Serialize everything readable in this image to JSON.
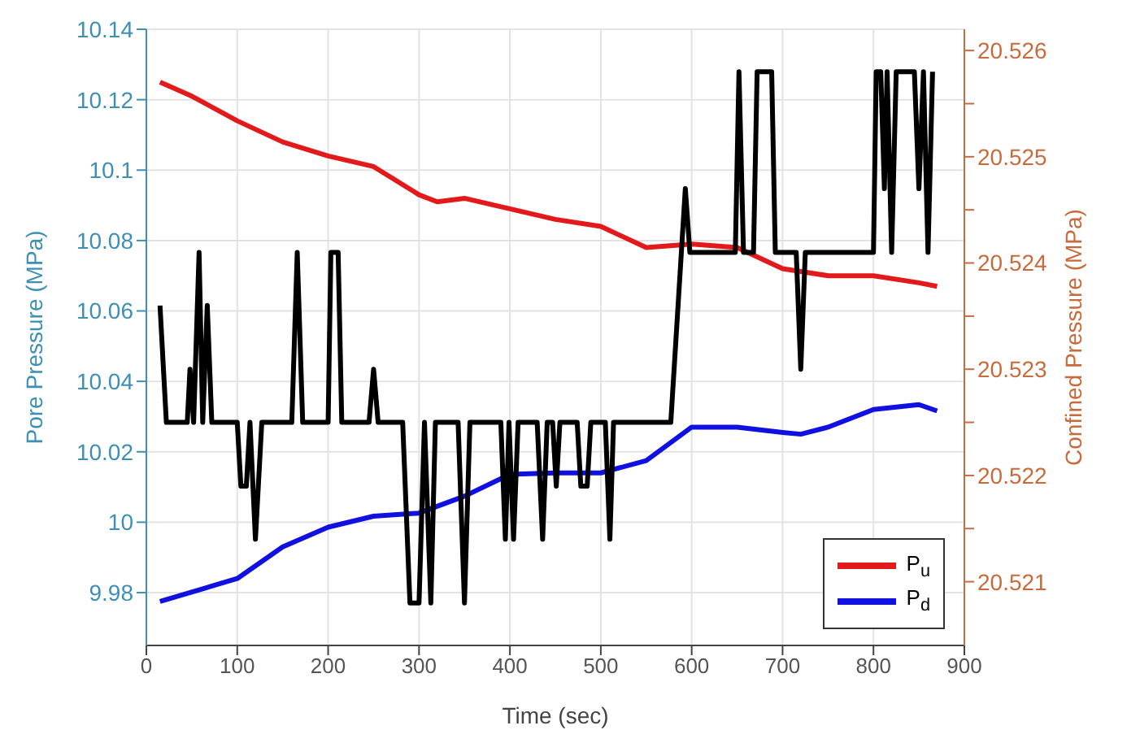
{
  "chart_data": {
    "type": "line",
    "xlabel": "Time (sec)",
    "ylabel": "Pore Pressure (MPa)",
    "y2label": "Confined Pressure (MPa)",
    "xlim": [
      0,
      900
    ],
    "xticks": [
      0,
      100,
      200,
      300,
      400,
      500,
      600,
      700,
      800,
      900
    ],
    "ylim": [
      9.965,
      10.14
    ],
    "yticks": [
      9.98,
      10,
      10.02,
      10.04,
      10.06,
      10.08,
      10.1,
      10.12,
      10.14
    ],
    "y2lim": [
      20.5204,
      20.5262
    ],
    "y2ticks": [
      20.521,
      {
        "value": 20.5215,
        "label": null
      },
      20.522,
      {
        "value": 20.5225,
        "label": null
      },
      20.523,
      {
        "value": 20.5235,
        "label": null
      },
      20.524,
      {
        "value": 20.5245,
        "label": null
      },
      20.525,
      {
        "value": 20.5255,
        "label": null
      },
      20.526
    ],
    "grid": true,
    "legend": "bottom right",
    "marker": "none",
    "line_style": "solid",
    "series": [
      {
        "name": "P$_{u}$",
        "color": "#e31a1c",
        "x": [
          15,
          50,
          100,
          150,
          200,
          250,
          300,
          320,
          350,
          400,
          450,
          500,
          550,
          600,
          650,
          700,
          750,
          800,
          850,
          870
        ],
        "values": [
          10.125,
          10.121,
          10.114,
          10.108,
          10.104,
          10.101,
          10.093,
          10.091,
          10.092,
          10.089,
          10.086,
          10.084,
          10.078,
          10.079,
          10.078,
          10.072,
          10.07,
          10.07,
          10.068,
          10.067
        ]
      },
      {
        "name": "P$_{d}$",
        "color": "#1010e0",
        "x": [
          15,
          100,
          150,
          200,
          250,
          300,
          350,
          400,
          450,
          500,
          550,
          600,
          650,
          700,
          720,
          750,
          800,
          850,
          870
        ],
        "values": [
          9.9775,
          9.984,
          9.993,
          9.9986,
          10.0017,
          10.0026,
          10.0074,
          10.0136,
          10.014,
          10.014,
          10.0175,
          10.027,
          10.027,
          10.0255,
          10.025,
          10.027,
          10.032,
          10.0334,
          10.0316
        ]
      },
      {
        "color": "#000000",
        "axis": "y2",
        "x": [
          15,
          22,
          45,
          48,
          52,
          58,
          62,
          67,
          72,
          100,
          104,
          110,
          114,
          120,
          127,
          160,
          166,
          172,
          200,
          203,
          211,
          215,
          245,
          250,
          255,
          282,
          290,
          300,
          306,
          313,
          318,
          343,
          350,
          356,
          390,
          395,
          399,
          404,
          409,
          430,
          436,
          441,
          447,
          451,
          455,
          474,
          478,
          485,
          489,
          505,
          510,
          514,
          577,
          593,
          598,
          648,
          652,
          657,
          668,
          672,
          688,
          692,
          715,
          720,
          725,
          800,
          803,
          808,
          812,
          815,
          820,
          825,
          845,
          850,
          855,
          860,
          865
        ],
        "values": [
          20.5236,
          20.5225,
          20.5225,
          20.523,
          20.5225,
          20.5241,
          20.5225,
          20.5236,
          20.5225,
          20.5225,
          20.5219,
          20.5219,
          20.5225,
          20.5214,
          20.5225,
          20.5225,
          20.5241,
          20.5225,
          20.5225,
          20.5241,
          20.5241,
          20.5225,
          20.5225,
          20.523,
          20.5225,
          20.5225,
          20.5208,
          20.5208,
          20.5225,
          20.5208,
          20.5225,
          20.5225,
          20.5208,
          20.5225,
          20.5225,
          20.5214,
          20.5225,
          20.5214,
          20.5225,
          20.5225,
          20.5214,
          20.5225,
          20.5225,
          20.5219,
          20.5225,
          20.5225,
          20.5219,
          20.5219,
          20.5225,
          20.5225,
          20.5214,
          20.5225,
          20.5225,
          20.5247,
          20.5241,
          20.5241,
          20.5258,
          20.5241,
          20.5241,
          20.5258,
          20.5258,
          20.5241,
          20.5241,
          20.523,
          20.5241,
          20.5241,
          20.5258,
          20.5258,
          20.5247,
          20.5258,
          20.5241,
          20.5258,
          20.5258,
          20.5247,
          20.5258,
          20.5241,
          20.5258
        ]
      }
    ]
  }
}
